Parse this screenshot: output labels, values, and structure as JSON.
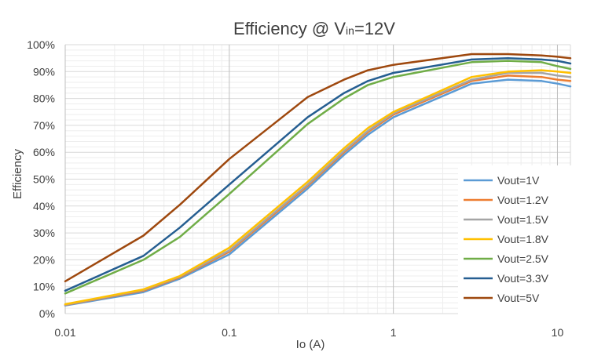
{
  "chart_data": {
    "type": "line",
    "title": {
      "main": "Efficiency @ V",
      "sub": "in",
      "tail": "=12V"
    },
    "xlabel": "Io (A)",
    "ylabel": "Efficiency",
    "x_scale": "log",
    "xlim": [
      0.01,
      12
    ],
    "ylim": [
      0,
      100
    ],
    "x_ticks": [
      0.01,
      0.1,
      1,
      10
    ],
    "x_tick_labels": [
      "0.01",
      "0.1",
      "1",
      "10"
    ],
    "y_ticks": [
      0,
      10,
      20,
      30,
      40,
      50,
      60,
      70,
      80,
      90,
      100
    ],
    "y_tick_labels": [
      "0%",
      "10%",
      "20%",
      "30%",
      "40%",
      "50%",
      "60%",
      "70%",
      "80%",
      "90%",
      "100%"
    ],
    "grid": true,
    "legend_position": "bottom-right",
    "x": [
      0.01,
      0.03,
      0.05,
      0.1,
      0.3,
      0.5,
      0.7,
      1,
      3,
      5,
      8,
      10,
      12
    ],
    "series": [
      {
        "name": "Vout=1V",
        "color": "#5B9BD5",
        "values": [
          3,
          8,
          13,
          22,
          46.5,
          59,
          66.5,
          73,
          85.5,
          87,
          86.5,
          85.5,
          84.5
        ]
      },
      {
        "name": "Vout=1.2V",
        "color": "#ED7D31",
        "values": [
          3.2,
          8.5,
          13.5,
          23,
          47.5,
          60,
          67.5,
          74,
          86.5,
          88.5,
          88,
          87,
          86.5
        ]
      },
      {
        "name": "Vout=1.5V",
        "color": "#A5A5A5",
        "values": [
          3.3,
          8.8,
          13.8,
          23.5,
          48,
          60.5,
          68,
          74.5,
          87,
          89.5,
          89.5,
          88.5,
          88
        ]
      },
      {
        "name": "Vout=1.8V",
        "color": "#FFC000",
        "values": [
          3.5,
          9,
          14,
          24.5,
          49,
          61.5,
          69,
          75,
          88,
          90,
          90.5,
          90,
          89.5
        ]
      },
      {
        "name": "Vout=2.5V",
        "color": "#70AD47",
        "values": [
          7.5,
          20,
          28.5,
          44.5,
          70.5,
          80,
          85,
          88,
          93.5,
          94,
          93.5,
          92,
          91
        ]
      },
      {
        "name": "Vout=3.3V",
        "color": "#255E91",
        "values": [
          8.5,
          21.5,
          32,
          48,
          73,
          82,
          86.5,
          89.5,
          94.5,
          95,
          94.5,
          94,
          93
        ]
      },
      {
        "name": "Vout=5V",
        "color": "#9E480E",
        "values": [
          12,
          29,
          40.5,
          57.5,
          80.5,
          87,
          90.5,
          92.5,
          96.5,
          96.5,
          96,
          95.5,
          95
        ]
      }
    ]
  }
}
